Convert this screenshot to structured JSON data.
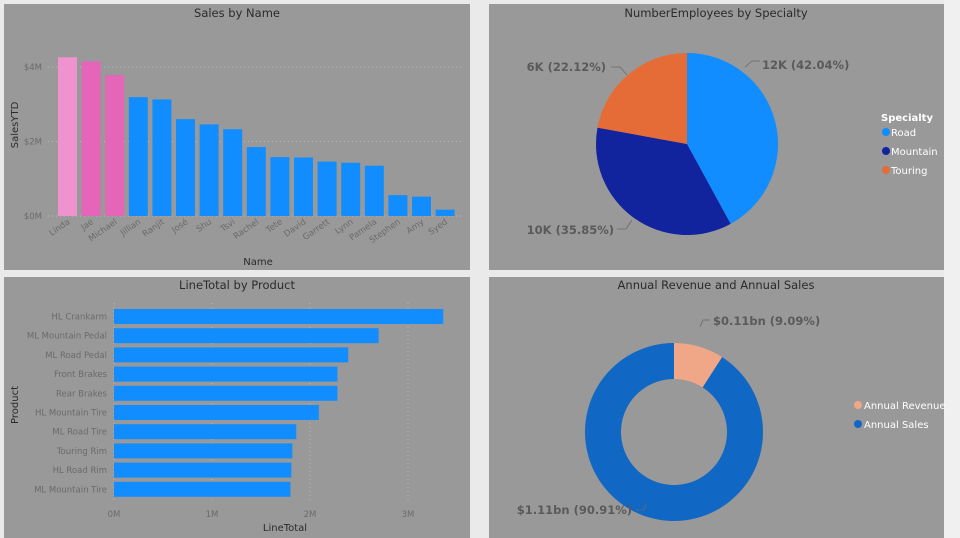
{
  "colors": {
    "page_bg": "#eaeaea",
    "panel_bg": "#999999",
    "accent_blue": "#118dff"
  },
  "chart_data": [
    {
      "type": "bar",
      "title": "Sales by Name",
      "xlabel": "Name",
      "ylabel": "SalesYTD",
      "ylim": [
        0,
        4400000
      ],
      "yticks": [
        {
          "value": 0,
          "label": "$0M"
        },
        {
          "value": 2000000,
          "label": "$2M"
        },
        {
          "value": 4000000,
          "label": "$4M"
        }
      ],
      "grid": true,
      "categories": [
        "Linda",
        "Jae",
        "Michael",
        "Jillian",
        "Ranjit",
        "José",
        "Shu",
        "Tsvi",
        "Rachel",
        "Tete",
        "David",
        "Garrett",
        "Lynn",
        "Pamela",
        "Stephen",
        "Amy",
        "Syed"
      ],
      "values": [
        4260000,
        4150000,
        3780000,
        3190000,
        3130000,
        2600000,
        2460000,
        2330000,
        1850000,
        1580000,
        1570000,
        1460000,
        1430000,
        1350000,
        560000,
        520000,
        170000
      ],
      "colors": [
        "#ef93cf",
        "#e565b8",
        "#e565b8",
        "#118dff",
        "#118dff",
        "#118dff",
        "#118dff",
        "#118dff",
        "#118dff",
        "#118dff",
        "#118dff",
        "#118dff",
        "#118dff",
        "#118dff",
        "#118dff",
        "#118dff",
        "#118dff"
      ]
    },
    {
      "type": "pie",
      "title": "NumberEmployees by Specialty",
      "legend_title": "Specialty",
      "legend_position": "right",
      "slices": [
        {
          "name": "Road",
          "value": 12000,
          "percent": 42.04,
          "label": "12K (42.04%)",
          "color": "#118dff"
        },
        {
          "name": "Mountain",
          "value": 10000,
          "percent": 35.85,
          "label": "10K (35.85%)",
          "color": "#12239e"
        },
        {
          "name": "Touring",
          "value": 6000,
          "percent": 22.12,
          "label": "6K (22.12%)",
          "color": "#e66c37"
        }
      ]
    },
    {
      "type": "bar",
      "orientation": "horizontal",
      "title": "LineTotal by Product",
      "xlabel": "LineTotal",
      "ylabel": "Product",
      "xlim": [
        0,
        3500000
      ],
      "xticks": [
        {
          "value": 0,
          "label": "0M"
        },
        {
          "value": 1000000,
          "label": "1M"
        },
        {
          "value": 2000000,
          "label": "2M"
        },
        {
          "value": 3000000,
          "label": "3M"
        }
      ],
      "grid": true,
      "categories": [
        "HL Crankarm",
        "ML Mountain Pedal",
        "ML Road Pedal",
        "Front Brakes",
        "Rear Brakes",
        "HL Mountain Tire",
        "ML Road Tire",
        "Touring Rim",
        "HL Road Rim",
        "ML Mountain Tire"
      ],
      "values": [
        3360000,
        2700000,
        2390000,
        2280000,
        2280000,
        2090000,
        1860000,
        1820000,
        1810000,
        1800000
      ],
      "color": "#118dff"
    },
    {
      "type": "pie",
      "donut": true,
      "title": "Annual Revenue and Annual Sales",
      "legend_position": "right",
      "slices": [
        {
          "name": "Annual Revenue",
          "value": 0.11,
          "percent": 9.09,
          "label": "$0.11bn (9.09%)",
          "color": "#f0a787"
        },
        {
          "name": "Annual Sales",
          "value": 1.11,
          "percent": 90.91,
          "label": "$1.11bn (90.91%)",
          "color": "#1167c4"
        }
      ]
    }
  ]
}
